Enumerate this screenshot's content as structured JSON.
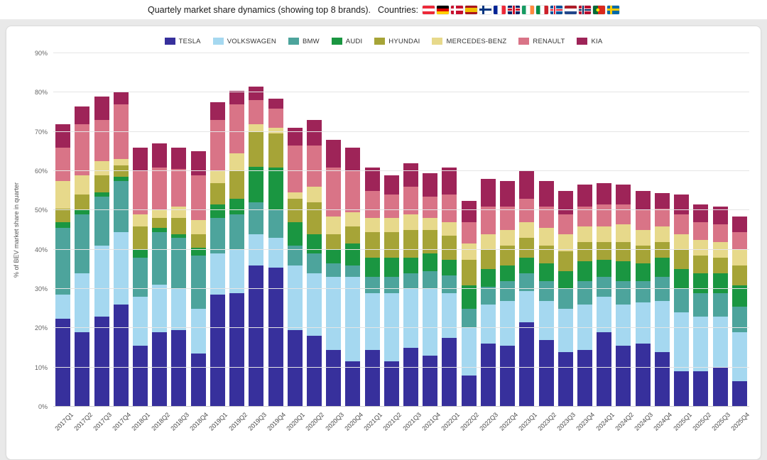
{
  "header": {
    "title": "Quartely market share dynamics (showing top 8 brands).",
    "countries_label": "Countries:",
    "flags": [
      "flag-austria",
      "flag-germany",
      "flag-denmark",
      "flag-spain",
      "flag-finland",
      "flag-france",
      "flag-uk",
      "flag-ireland",
      "flag-italy",
      "flag-iceland",
      "flag-netherlands",
      "flag-norway",
      "flag-portugal",
      "flag-sweden"
    ]
  },
  "chart_data": {
    "type": "bar",
    "stacked": true,
    "title": "",
    "xlabel": "",
    "ylabel": "% of BEV market share in quarter",
    "ylim": [
      0,
      90
    ],
    "y_ticks": [
      "0%",
      "10%",
      "20%",
      "30%",
      "40%",
      "50%",
      "60%",
      "70%",
      "80%",
      "90%"
    ],
    "grid": true,
    "legend_position": "top",
    "categories": [
      "2017Q1",
      "2017Q2",
      "2017Q3",
      "2017Q4",
      "2018Q1",
      "2018Q2",
      "2018Q3",
      "2018Q4",
      "2019Q1",
      "2019Q2",
      "2019Q3",
      "2019Q4",
      "2020Q1",
      "2020Q2",
      "2020Q3",
      "2020Q4",
      "2021Q1",
      "2021Q2",
      "2021Q3",
      "2021Q4",
      "2022Q1",
      "2022Q2",
      "2022Q3",
      "2022Q4",
      "2023Q1",
      "2023Q2",
      "2023Q3",
      "2023Q4",
      "2024Q1",
      "2024Q2",
      "2024Q3",
      "2024Q4",
      "2025Q1",
      "2025Q2",
      "2025Q3",
      "2025Q4"
    ],
    "series": [
      {
        "name": "TESLA",
        "color": "#37309c",
        "values": [
          22.5,
          19,
          23,
          26,
          15.5,
          19,
          19.5,
          13.5,
          28.5,
          29,
          36,
          35.5,
          19.5,
          18,
          14.5,
          11.5,
          14.5,
          11.5,
          15,
          13,
          17.5,
          8,
          16,
          15.5,
          21.5,
          17,
          14,
          14.5,
          19,
          15.5,
          16,
          14,
          9,
          9,
          10,
          6.5
        ]
      },
      {
        "name": "VOLKSWAGEN",
        "color": "#a5d8f0",
        "values": [
          6,
          15,
          18,
          18.5,
          12.5,
          12,
          10.5,
          11.5,
          10.5,
          11,
          8,
          7.5,
          16.5,
          16,
          18.5,
          21.5,
          14.5,
          17.5,
          15,
          17,
          11.5,
          12,
          10,
          11.5,
          8,
          10,
          11,
          11.5,
          9,
          10.5,
          10.5,
          13,
          15,
          14,
          13,
          12.5
        ]
      },
      {
        "name": "BMW",
        "color": "#4da49c",
        "values": [
          17,
          15,
          12.5,
          13,
          10,
          13.5,
          13,
          13.5,
          9,
          9,
          8,
          7,
          5,
          5,
          3.5,
          3,
          4,
          4,
          4,
          4.5,
          4.5,
          5,
          4.5,
          5,
          4.5,
          5,
          5,
          6,
          5,
          6,
          5.5,
          6,
          6,
          6,
          6,
          6.5
        ]
      },
      {
        "name": "AUDI",
        "color": "#1a9641",
        "values": [
          1.5,
          1,
          1,
          1,
          2,
          1,
          1,
          2,
          3.5,
          4,
          9,
          11,
          6,
          5,
          3.5,
          5.5,
          5,
          5,
          4,
          4.5,
          4,
          6,
          4.5,
          4,
          4,
          4.5,
          4.5,
          5,
          4.5,
          5,
          4.5,
          5,
          5,
          5,
          5,
          5.5
        ]
      },
      {
        "name": "HYUNDAI",
        "color": "#a6a437",
        "values": [
          3.5,
          4,
          4.5,
          3,
          6,
          2.5,
          4,
          3.5,
          5.5,
          7,
          9,
          8.5,
          6,
          8,
          4,
          4.5,
          6.5,
          6.5,
          7,
          6,
          6,
          6.5,
          5,
          5,
          5,
          4.5,
          5,
          5,
          4.5,
          5,
          4.5,
          4,
          5,
          4.5,
          4,
          5
        ]
      },
      {
        "name": "MERCEDES-BENZ",
        "color": "#e7d98b",
        "values": [
          7,
          5,
          3.5,
          1.5,
          3,
          2,
          3,
          3.5,
          3,
          4.5,
          2,
          1.5,
          1.5,
          4,
          4.5,
          3.5,
          3.5,
          3.5,
          4,
          3,
          3.5,
          4,
          4,
          4,
          4,
          4.5,
          4.5,
          4,
          4,
          4.5,
          4,
          4,
          4,
          4,
          4,
          4
        ]
      },
      {
        "name": "RENAULT",
        "color": "#d97487",
        "values": [
          8.5,
          13,
          10.5,
          14,
          11,
          11,
          9.5,
          11.5,
          13,
          12.5,
          6,
          5,
          12,
          10.5,
          12.5,
          10.5,
          7,
          6,
          7,
          5.5,
          7,
          5.5,
          7,
          6,
          6,
          5.5,
          5,
          5,
          5.5,
          5,
          5,
          4.5,
          5,
          4.5,
          4.5,
          4.5
        ]
      },
      {
        "name": "KIA",
        "color": "#9e2458",
        "values": [
          6,
          4.5,
          6,
          3,
          6,
          6,
          5.5,
          6,
          4.5,
          3.5,
          3.5,
          2.5,
          4.5,
          6.5,
          7,
          6,
          6,
          5,
          6,
          6,
          7,
          5.5,
          7,
          6.5,
          7,
          6.5,
          6,
          5.5,
          5.5,
          5,
          5,
          4,
          5,
          4.5,
          4.5,
          4
        ]
      }
    ]
  }
}
